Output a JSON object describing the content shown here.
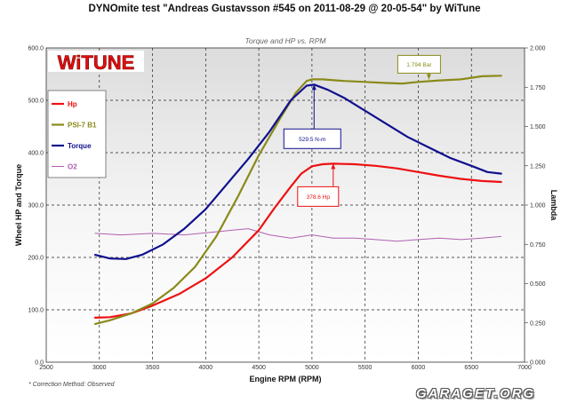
{
  "header": {
    "title": "DYNOmite test \"Andreas Gustavsson #545 on 2011-08-29 @ 20-05-54\" by WiTune"
  },
  "footer": {
    "note": "* Correction Method: Observed",
    "watermark": "GARAGET.ORG"
  },
  "colors": {
    "hp": "#ee1111",
    "psi": "#8a8a1a",
    "torque": "#10108e",
    "o2": "#b060b0",
    "logo_red": "#e01010"
  },
  "chart_data": {
    "type": "line",
    "logo": "WiTUNE",
    "title": "Torque and HP vs. RPM",
    "xlabel": "Engine RPM (RPM)",
    "ylabel": "Wheel HP and Torque",
    "y2label": "Lambda",
    "xlim": [
      2500,
      7000
    ],
    "ylim": [
      0,
      600
    ],
    "y2lim": [
      0,
      2.0
    ],
    "x_ticks": [
      2500,
      3000,
      3500,
      4000,
      4500,
      5000,
      5500,
      6000,
      6500,
      7000
    ],
    "y_ticks": [
      "0.0",
      "100.0",
      "200.0",
      "300.0",
      "400.0",
      "500.0",
      "600.0"
    ],
    "y2_ticks": [
      "0.000",
      "0.250",
      "0.500",
      "0.750",
      "1.000",
      "1.250",
      "1.500",
      "1.750",
      "2.000"
    ],
    "grid": true,
    "legend_position": "left",
    "series": [
      {
        "name": "Hp",
        "color_key": "hp",
        "axis": "left",
        "points": [
          [
            2960,
            85
          ],
          [
            3100,
            86
          ],
          [
            3300,
            93
          ],
          [
            3500,
            108
          ],
          [
            3750,
            130
          ],
          [
            4000,
            160
          ],
          [
            4250,
            200
          ],
          [
            4500,
            252
          ],
          [
            4650,
            295
          ],
          [
            4800,
            335
          ],
          [
            4900,
            360
          ],
          [
            5000,
            374
          ],
          [
            5100,
            378
          ],
          [
            5200,
            379
          ],
          [
            5400,
            378
          ],
          [
            5600,
            375
          ],
          [
            5800,
            370
          ],
          [
            6000,
            363
          ],
          [
            6200,
            356
          ],
          [
            6400,
            350
          ],
          [
            6600,
            346
          ],
          [
            6780,
            344
          ]
        ]
      },
      {
        "name": "PSI-7 B1",
        "color_key": "psi",
        "axis": "left",
        "points": [
          [
            2960,
            73
          ],
          [
            3100,
            80
          ],
          [
            3300,
            93
          ],
          [
            3500,
            112
          ],
          [
            3700,
            142
          ],
          [
            3900,
            182
          ],
          [
            4100,
            240
          ],
          [
            4300,
            315
          ],
          [
            4500,
            395
          ],
          [
            4700,
            465
          ],
          [
            4850,
            515
          ],
          [
            4950,
            537
          ],
          [
            5000,
            540
          ],
          [
            5100,
            540
          ],
          [
            5300,
            537
          ],
          [
            5500,
            535
          ],
          [
            5700,
            533
          ],
          [
            5850,
            532
          ],
          [
            6000,
            535
          ],
          [
            6200,
            538
          ],
          [
            6400,
            540
          ],
          [
            6600,
            546
          ],
          [
            6780,
            547
          ]
        ]
      },
      {
        "name": "Torque",
        "color_key": "torque",
        "axis": "left",
        "points": [
          [
            2960,
            205
          ],
          [
            3100,
            198
          ],
          [
            3250,
            197
          ],
          [
            3400,
            205
          ],
          [
            3600,
            225
          ],
          [
            3800,
            255
          ],
          [
            4000,
            292
          ],
          [
            4200,
            340
          ],
          [
            4400,
            388
          ],
          [
            4600,
            440
          ],
          [
            4800,
            500
          ],
          [
            4950,
            528
          ],
          [
            5020,
            530
          ],
          [
            5150,
            520
          ],
          [
            5300,
            505
          ],
          [
            5500,
            480
          ],
          [
            5700,
            455
          ],
          [
            5900,
            430
          ],
          [
            6100,
            410
          ],
          [
            6300,
            390
          ],
          [
            6500,
            375
          ],
          [
            6650,
            363
          ],
          [
            6780,
            360
          ]
        ]
      },
      {
        "name": "O2",
        "color_key": "o2",
        "axis": "right",
        "points": [
          [
            2960,
            0.82
          ],
          [
            3200,
            0.81
          ],
          [
            3500,
            0.82
          ],
          [
            3800,
            0.81
          ],
          [
            4100,
            0.83
          ],
          [
            4400,
            0.85
          ],
          [
            4600,
            0.81
          ],
          [
            4800,
            0.79
          ],
          [
            5000,
            0.81
          ],
          [
            5200,
            0.79
          ],
          [
            5400,
            0.79
          ],
          [
            5600,
            0.78
          ],
          [
            5800,
            0.77
          ],
          [
            6000,
            0.78
          ],
          [
            6200,
            0.79
          ],
          [
            6400,
            0.78
          ],
          [
            6600,
            0.79
          ],
          [
            6780,
            0.8
          ]
        ]
      }
    ],
    "annotations": [
      {
        "label": "529.5 N-m",
        "color_key": "torque",
        "x": 5020,
        "y": 530
      },
      {
        "label": "378.6 Hp",
        "color_key": "hp",
        "x": 5200,
        "y": 379
      },
      {
        "label": "1.794 Bar",
        "color_key": "psi",
        "x": 6100,
        "y": 540
      }
    ]
  }
}
